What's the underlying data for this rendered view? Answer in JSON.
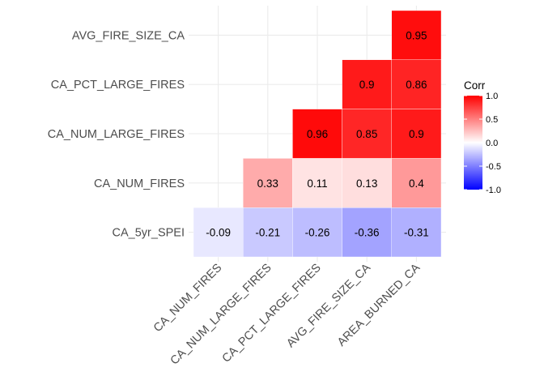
{
  "chart_data": {
    "type": "heatmap",
    "variant": "correlation-lower-triangle",
    "x_categories": [
      "CA_NUM_FIRES",
      "CA_NUM_LARGE_FIRES",
      "CA_PCT_LARGE_FIRES",
      "AVG_FIRE_SIZE_CA",
      "AREA_BURNED_CA"
    ],
    "y_categories": [
      "CA_5yr_SPEI",
      "CA_NUM_FIRES",
      "CA_NUM_LARGE_FIRES",
      "CA_PCT_LARGE_FIRES",
      "AVG_FIRE_SIZE_CA"
    ],
    "cells": [
      {
        "x": "CA_NUM_FIRES",
        "y": "CA_5yr_SPEI",
        "value": -0.09,
        "label": "-0.09"
      },
      {
        "x": "CA_NUM_LARGE_FIRES",
        "y": "CA_5yr_SPEI",
        "value": -0.21,
        "label": "-0.21"
      },
      {
        "x": "CA_PCT_LARGE_FIRES",
        "y": "CA_5yr_SPEI",
        "value": -0.26,
        "label": "-0.26"
      },
      {
        "x": "AVG_FIRE_SIZE_CA",
        "y": "CA_5yr_SPEI",
        "value": -0.36,
        "label": "-0.36"
      },
      {
        "x": "AREA_BURNED_CA",
        "y": "CA_5yr_SPEI",
        "value": -0.31,
        "label": "-0.31"
      },
      {
        "x": "CA_NUM_LARGE_FIRES",
        "y": "CA_NUM_FIRES",
        "value": 0.33,
        "label": "0.33"
      },
      {
        "x": "CA_PCT_LARGE_FIRES",
        "y": "CA_NUM_FIRES",
        "value": 0.11,
        "label": "0.11"
      },
      {
        "x": "AVG_FIRE_SIZE_CA",
        "y": "CA_NUM_FIRES",
        "value": 0.13,
        "label": "0.13"
      },
      {
        "x": "AREA_BURNED_CA",
        "y": "CA_NUM_FIRES",
        "value": 0.4,
        "label": "0.4"
      },
      {
        "x": "CA_PCT_LARGE_FIRES",
        "y": "CA_NUM_LARGE_FIRES",
        "value": 0.96,
        "label": "0.96"
      },
      {
        "x": "AVG_FIRE_SIZE_CA",
        "y": "CA_NUM_LARGE_FIRES",
        "value": 0.85,
        "label": "0.85"
      },
      {
        "x": "AREA_BURNED_CA",
        "y": "CA_NUM_LARGE_FIRES",
        "value": 0.9,
        "label": "0.9"
      },
      {
        "x": "AVG_FIRE_SIZE_CA",
        "y": "CA_PCT_LARGE_FIRES",
        "value": 0.9,
        "label": "0.9"
      },
      {
        "x": "AREA_BURNED_CA",
        "y": "CA_PCT_LARGE_FIRES",
        "value": 0.86,
        "label": "0.86"
      },
      {
        "x": "AREA_BURNED_CA",
        "y": "AVG_FIRE_SIZE_CA",
        "value": 0.95,
        "label": "0.95"
      }
    ],
    "color_scale": {
      "low_color": "#0000ff",
      "mid_color": "#ffffff",
      "high_color": "#ff0000",
      "limits": [
        -1.0,
        1.0
      ]
    },
    "legend": {
      "title": "Corr",
      "position": "right",
      "ticks": [
        {
          "value": 1.0,
          "label": "1.0"
        },
        {
          "value": 0.5,
          "label": "0.5"
        },
        {
          "value": 0.0,
          "label": "0.0"
        },
        {
          "value": -0.5,
          "label": "-0.5"
        },
        {
          "value": -1.0,
          "label": "-1.0"
        }
      ]
    },
    "grid": true,
    "x_tick_rotation": 45,
    "title": "",
    "xlabel": "",
    "ylabel": ""
  }
}
